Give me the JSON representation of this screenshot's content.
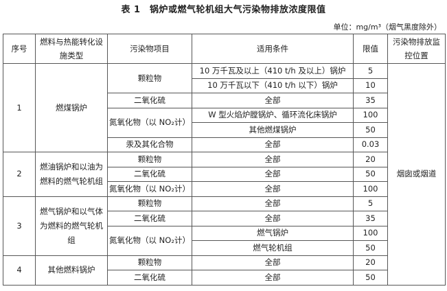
{
  "title": "表 1　锅炉或燃气轮机组大气污染物排放浓度限值",
  "unit": "单位：mg/m³（烟气黑度除外）",
  "headers": [
    "序号",
    "燃料与热能转化设施类型",
    "污染物项目",
    "适用条件",
    "限值",
    "污染物排放监控位置"
  ],
  "monitor_location": "烟囱或烟道",
  "groups": [
    {
      "no": "1",
      "type": "燃煤锅炉",
      "rows": [
        {
          "pollutant": "颗粒物",
          "condition": "10 万千瓦及以上（410 t/h 及以上）锅炉",
          "limit": "5"
        },
        {
          "condition": "10 万千瓦以下（410 t/h 以下）锅炉",
          "limit": "10"
        },
        {
          "pollutant": "二氧化硫",
          "condition": "全部",
          "limit": "35"
        },
        {
          "pollutant": "氮氧化物（以 NO₂计）",
          "condition": "W 型火焰炉膛锅炉、循环流化床锅炉",
          "limit": "100"
        },
        {
          "condition": "其他燃煤锅炉",
          "limit": "50"
        },
        {
          "pollutant": "汞及其化合物",
          "condition": "全部",
          "limit": "0.03"
        }
      ]
    },
    {
      "no": "2",
      "type": "燃油锅炉和以油为燃料的燃气轮机组",
      "rows": [
        {
          "pollutant": "颗粒物",
          "condition": "全部",
          "limit": "20"
        },
        {
          "pollutant": "二氧化硫",
          "condition": "全部",
          "limit": "50"
        },
        {
          "pollutant": "氮氧化物（以 NO₂计）",
          "condition": "全部",
          "limit": "100"
        }
      ]
    },
    {
      "no": "3",
      "type": "燃气锅炉和以气体为燃料的燃气轮机组",
      "rows": [
        {
          "pollutant": "颗粒物",
          "condition": "全部",
          "limit": "5"
        },
        {
          "pollutant": "二氧化硫",
          "condition": "全部",
          "limit": "35"
        },
        {
          "pollutant": "氮氧化物（以 NO₂计）",
          "condition": "燃气锅炉",
          "limit": "100"
        },
        {
          "condition": "燃气轮机组",
          "limit": "50"
        }
      ]
    },
    {
      "no": "4",
      "type": "其他燃料锅炉",
      "rows": [
        {
          "pollutant": "颗粒物",
          "condition": "全部",
          "limit": "20"
        },
        {
          "pollutant": "二氧化硫",
          "condition": "全部",
          "limit": "50"
        }
      ]
    }
  ]
}
